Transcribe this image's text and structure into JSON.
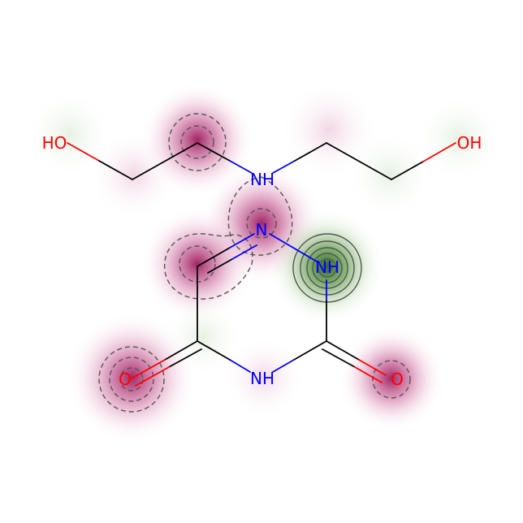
{
  "molecule": {
    "atoms": {
      "hydroxyl_left": "HO",
      "hydroxyl_right": "OH",
      "amine_nh": "NH",
      "ring_n": "N",
      "ring_nh_upper": "NH",
      "ring_nh_lower": "NH",
      "carbonyl_o_left": "O",
      "carbonyl_o_right": "O"
    },
    "colors": {
      "carbon_bond": "#000000",
      "nitrogen": "#0000ff",
      "oxygen": "#ff0000",
      "positive_weight": "#b0306e",
      "negative_weight": "#3f7a2f",
      "contour": "#555555"
    }
  }
}
